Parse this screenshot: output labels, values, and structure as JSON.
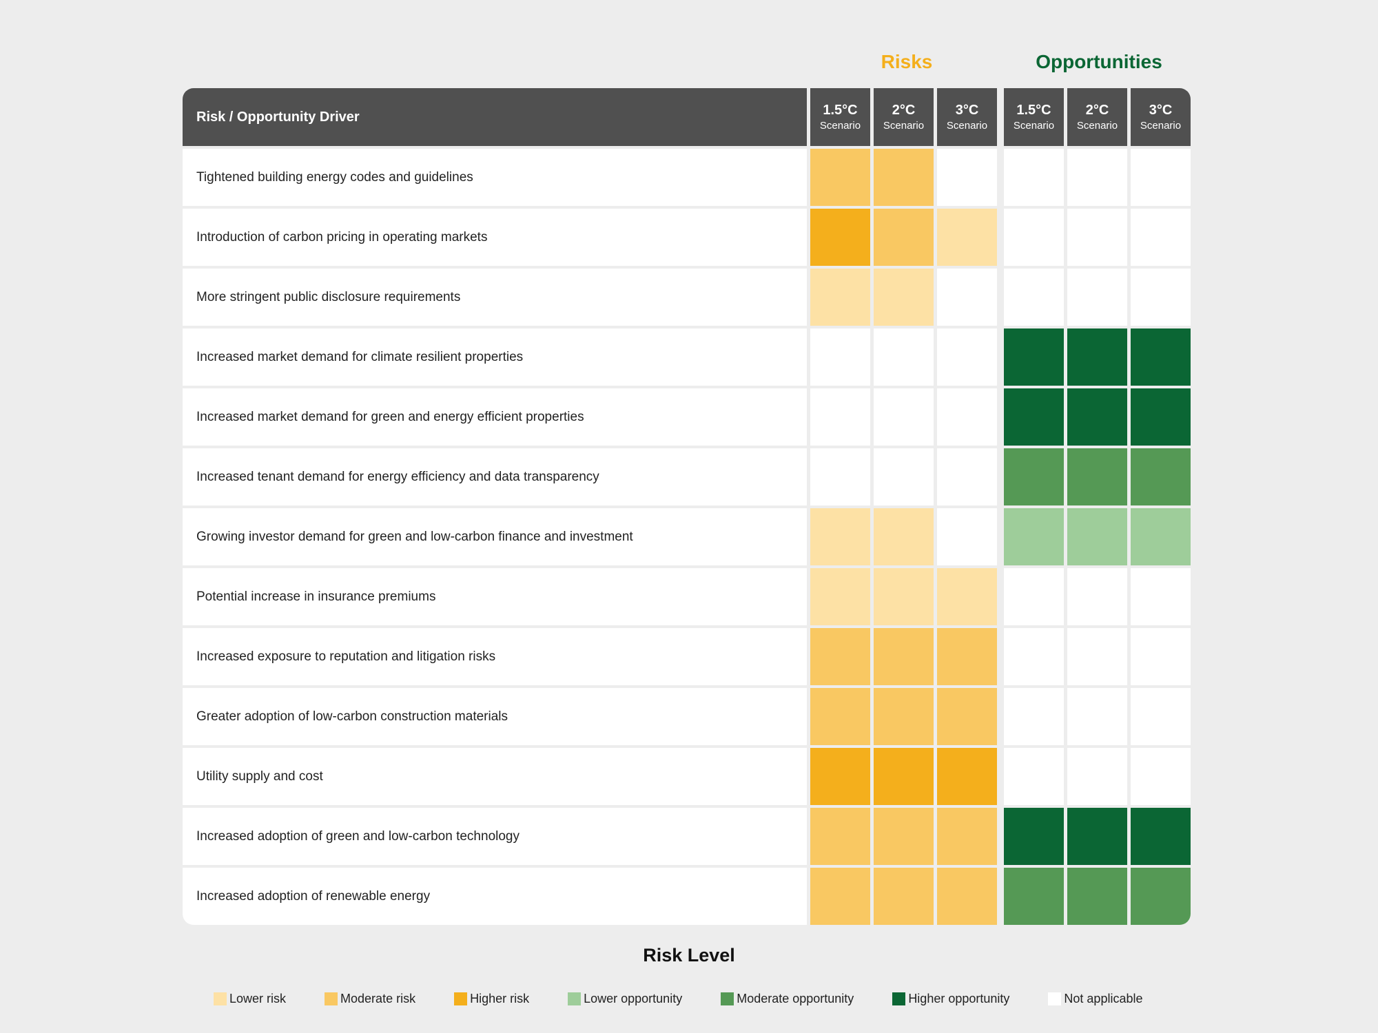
{
  "groups": {
    "risks": "Risks",
    "opportunities": "Opportunities"
  },
  "colors": {
    "risks_title": "#f4af1c",
    "opportunities_title": "#0b6634",
    "header": "#505050",
    "L": "#fde1a5",
    "M": "#f9c862",
    "H": "#f4af1c",
    "LO": "#9ecd9a",
    "MO": "#559955",
    "HO": "#0b6634",
    "N": "#ffffff"
  },
  "header": {
    "driver": "Risk / Opportunity Driver",
    "scenarios": [
      {
        "t": "1.5°C",
        "s": "Scenario"
      },
      {
        "t": "2°C",
        "s": "Scenario"
      },
      {
        "t": "3°C",
        "s": "Scenario"
      },
      {
        "t": "1.5°C",
        "s": "Scenario"
      },
      {
        "t": "2°C",
        "s": "Scenario"
      },
      {
        "t": "3°C",
        "s": "Scenario"
      }
    ]
  },
  "rows": [
    {
      "driver": "Tightened building energy codes and guidelines",
      "levels": [
        "M",
        "M",
        "N",
        "N",
        "N",
        "N"
      ]
    },
    {
      "driver": "Introduction of carbon pricing in operating markets",
      "levels": [
        "H",
        "M",
        "L",
        "N",
        "N",
        "N"
      ]
    },
    {
      "driver": "More stringent public disclosure requirements",
      "levels": [
        "L",
        "L",
        "N",
        "N",
        "N",
        "N"
      ]
    },
    {
      "driver": "Increased market demand for climate resilient properties",
      "levels": [
        "N",
        "N",
        "N",
        "HO",
        "HO",
        "HO"
      ]
    },
    {
      "driver": "Increased market demand for green and energy efficient properties",
      "levels": [
        "N",
        "N",
        "N",
        "HO",
        "HO",
        "HO"
      ]
    },
    {
      "driver": "Increased tenant demand for energy efficiency and data transparency",
      "levels": [
        "N",
        "N",
        "N",
        "MO",
        "MO",
        "MO"
      ]
    },
    {
      "driver": "Growing investor demand for green and low-carbon finance and investment",
      "levels": [
        "L",
        "L",
        "N",
        "LO",
        "LO",
        "LO"
      ]
    },
    {
      "driver": "Potential increase in insurance premiums",
      "levels": [
        "L",
        "L",
        "L",
        "N",
        "N",
        "N"
      ]
    },
    {
      "driver": "Increased exposure to reputation and litigation risks",
      "levels": [
        "M",
        "M",
        "M",
        "N",
        "N",
        "N"
      ]
    },
    {
      "driver": "Greater adoption of low-carbon construction materials",
      "levels": [
        "M",
        "M",
        "M",
        "N",
        "N",
        "N"
      ]
    },
    {
      "driver": "Utility supply and cost",
      "levels": [
        "H",
        "H",
        "H",
        "N",
        "N",
        "N"
      ]
    },
    {
      "driver": "Increased adoption of green and low-carbon technology",
      "levels": [
        "M",
        "M",
        "M",
        "HO",
        "HO",
        "HO"
      ]
    },
    {
      "driver": "Increased adoption of renewable energy",
      "levels": [
        "M",
        "M",
        "M",
        "MO",
        "MO",
        "MO"
      ]
    }
  ],
  "legend": {
    "title": "Risk Level",
    "items": [
      {
        "code": "L",
        "label": "Lower risk"
      },
      {
        "code": "M",
        "label": "Moderate risk"
      },
      {
        "code": "H",
        "label": "Higher risk"
      },
      {
        "code": "LO",
        "label": "Lower opportunity"
      },
      {
        "code": "MO",
        "label": "Moderate opportunity"
      },
      {
        "code": "HO",
        "label": "Higher opportunity"
      },
      {
        "code": "N",
        "label": "Not applicable"
      }
    ]
  }
}
